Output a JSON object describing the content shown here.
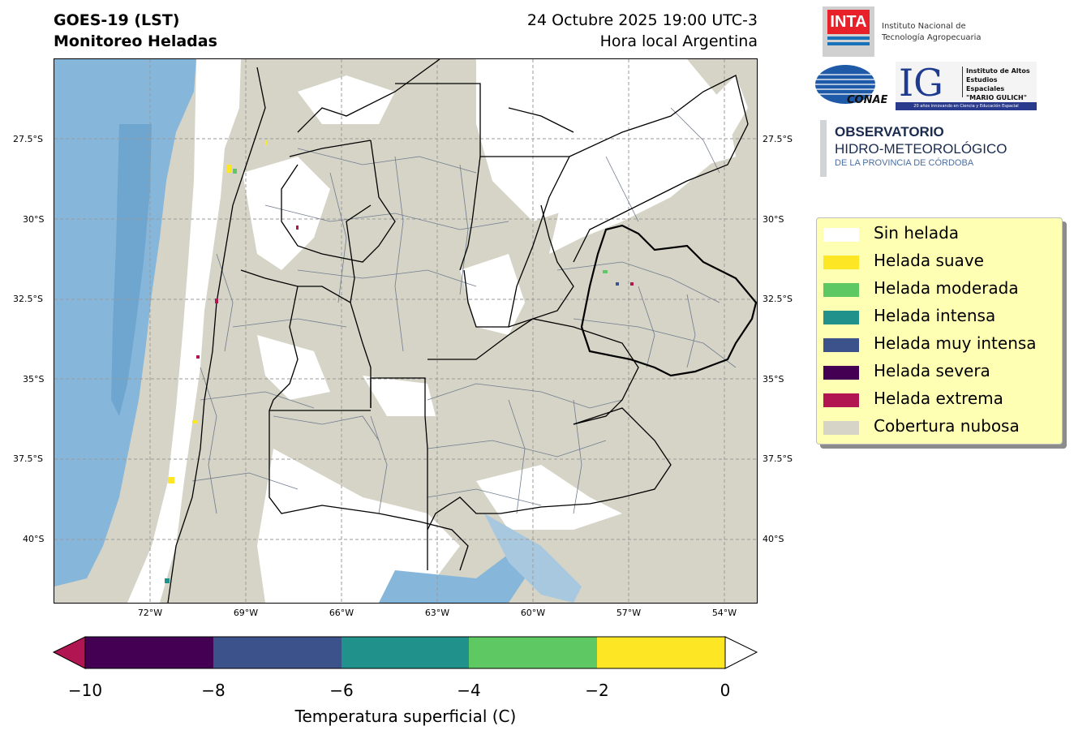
{
  "header": {
    "satellite": "GOES-19 (LST)",
    "product": "Monitoreo Heladas",
    "datetime": "24 Octubre 2025 19:00 UTC-3",
    "timezone": "Hora local Argentina"
  },
  "map": {
    "lat_labels": [
      "27.5°S",
      "30°S",
      "32.5°S",
      "35°S",
      "37.5°S",
      "40°S"
    ],
    "lon_labels": [
      "72°W",
      "69°W",
      "66°W",
      "63°W",
      "60°W",
      "57°W",
      "54°W"
    ],
    "colors": {
      "cloud": "#d5d4c6",
      "no_frost": "#ffffff",
      "water": "#7fb2d8",
      "border": "#000000",
      "district": "#707b8f"
    }
  },
  "logos": {
    "inta_mark": "INTA",
    "inta_name_1": "Instituto Nacional de",
    "inta_name_2": "Tecnología Agropecuaria",
    "conae": "CONAE",
    "ig_mark": "IG",
    "ig_name_1": "Instituto de Altos",
    "ig_name_2": "Estudios Espaciales",
    "ig_name_3": "\"MARIO GULICH\"",
    "ig_tagline": "20 años innovando en Ciencia y Educación Espacial",
    "obs_1": "OBSERVATORIO",
    "obs_2": "HIDRO-METEOROLÓGICO",
    "obs_3": "DE LA PROVINCIA DE CÓRDOBA"
  },
  "legend": {
    "items": [
      {
        "label": "Sin helada",
        "color": "#ffffff"
      },
      {
        "label": "Helada suave",
        "color": "#fde725"
      },
      {
        "label": "Helada moderada",
        "color": "#5ec962"
      },
      {
        "label": "Helada intensa",
        "color": "#21918c"
      },
      {
        "label": "Helada muy intensa",
        "color": "#3b528b"
      },
      {
        "label": "Helada severa",
        "color": "#440154"
      },
      {
        "label": "Helada extrema",
        "color": "#b11552"
      },
      {
        "label": "Cobertura nubosa",
        "color": "#d5d4c6"
      }
    ]
  },
  "colorbar": {
    "title": "Temperatura superficial (C)",
    "ticks": [
      "−10",
      "−8",
      "−6",
      "−4",
      "−2",
      "0"
    ],
    "segments": [
      "#440154",
      "#3b528b",
      "#21918c",
      "#5ec962",
      "#fde725"
    ],
    "under_color": "#b11552",
    "over_color": "#ffffff"
  }
}
